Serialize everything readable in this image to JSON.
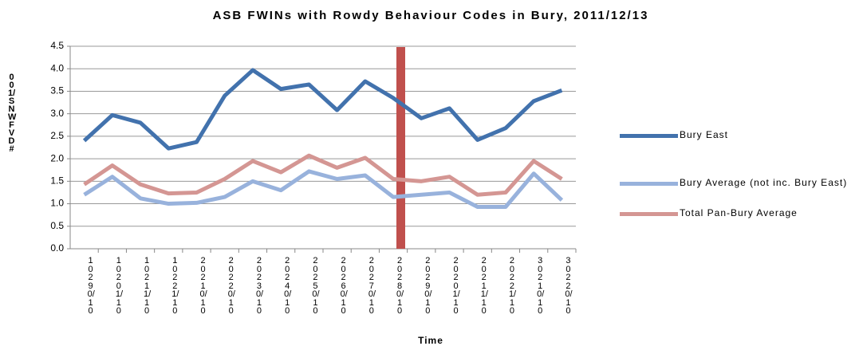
{
  "chart_data": {
    "type": "line",
    "title": "ASB FWINs with Rowdy Behaviour Codes in Bury, 2011/12/13",
    "x_label": "Time",
    "y_label": "001/SNWFVD#",
    "categories": [
      "10290/10",
      "10201/10",
      "10211/10",
      "10221/10",
      "20210/10",
      "20220/10",
      "20230/10",
      "20240/10",
      "20250/10",
      "20260/10",
      "20270/10",
      "20280/10",
      "20290/10",
      "20201/10",
      "20211/10",
      "20221/10",
      "30210/10",
      "30220/10"
    ],
    "series": [
      {
        "name": "Bury East",
        "color": "#4272ad",
        "values": [
          2.4,
          2.97,
          2.8,
          2.23,
          2.37,
          3.4,
          3.97,
          3.55,
          3.65,
          3.08,
          3.72,
          3.35,
          2.9,
          3.12,
          2.42,
          2.68,
          3.28,
          3.52
        ]
      },
      {
        "name": "Bury Average (not inc. Bury East)",
        "color": "#98b2dc",
        "values": [
          1.2,
          1.6,
          1.12,
          1.0,
          1.02,
          1.15,
          1.5,
          1.3,
          1.72,
          1.55,
          1.63,
          1.15,
          1.2,
          1.25,
          0.93,
          0.93,
          1.67,
          1.08
        ]
      },
      {
        "name": "Total Pan-Bury Average",
        "color": "#d49693",
        "values": [
          1.43,
          1.85,
          1.43,
          1.23,
          1.25,
          1.55,
          1.95,
          1.7,
          2.07,
          1.8,
          2.02,
          1.55,
          1.5,
          1.6,
          1.2,
          1.25,
          1.95,
          1.55
        ]
      }
    ],
    "ylim": [
      0,
      4.5
    ],
    "yticks": [
      {
        "value": 0,
        "label": "0.0"
      },
      0.5,
      {
        "value": 1,
        "label": "1.0"
      },
      1.5,
      {
        "value": 2,
        "label": "2.0"
      },
      2.5,
      {
        "value": 3,
        "label": "3.0"
      },
      3.5,
      {
        "value": 4,
        "label": "4.0"
      },
      4.5
    ],
    "grid": true,
    "legend": "right"
  }
}
